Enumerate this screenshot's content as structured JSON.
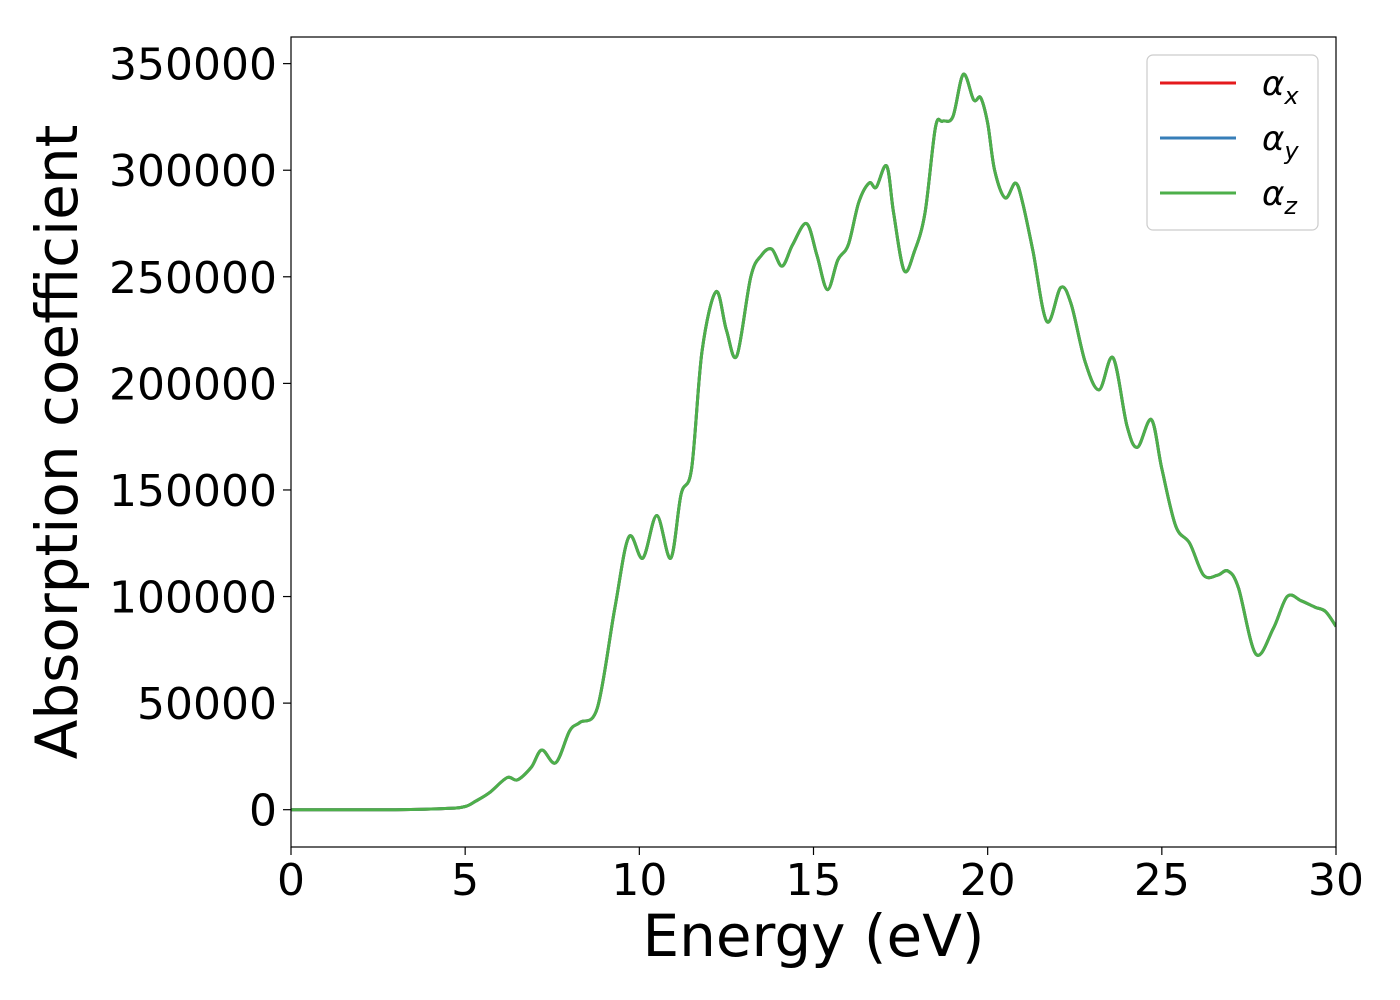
{
  "chart_data": {
    "type": "line",
    "title": "",
    "xlabel": "Energy (eV)",
    "ylabel": "Absorption coefficient",
    "xlim": [
      0,
      30
    ],
    "ylim": [
      -17500,
      362500
    ],
    "xticks": [
      0,
      5,
      10,
      15,
      20,
      25,
      30
    ],
    "xtick_labels": [
      "0",
      "5",
      "10",
      "15",
      "20",
      "25",
      "30"
    ],
    "yticks": [
      0,
      50000,
      100000,
      150000,
      200000,
      250000,
      300000,
      350000
    ],
    "ytick_labels": [
      "0",
      "50000",
      "100000",
      "150000",
      "200000",
      "250000",
      "300000",
      "350000"
    ],
    "grid": false,
    "legend_position": "top-right",
    "x": [
      0,
      3,
      4.5,
      5,
      5.3,
      5.7,
      6.2,
      6.5,
      6.9,
      7.2,
      7.6,
      8.0,
      8.3,
      8.8,
      9.3,
      9.7,
      10.1,
      10.5,
      10.9,
      11.2,
      11.5,
      11.8,
      12.2,
      12.5,
      12.8,
      13.2,
      13.5,
      13.8,
      14.1,
      14.4,
      14.8,
      15.1,
      15.4,
      15.7,
      16.0,
      16.3,
      16.6,
      16.8,
      17.1,
      17.3,
      17.6,
      17.9,
      18.2,
      18.5,
      18.7,
      19.0,
      19.3,
      19.6,
      19.8,
      20.0,
      20.2,
      20.5,
      20.8,
      21.0,
      21.3,
      21.7,
      22.1,
      22.4,
      22.8,
      23.2,
      23.6,
      24.0,
      24.3,
      24.7,
      25.0,
      25.4,
      25.8,
      26.2,
      26.6,
      26.9,
      27.2,
      27.7,
      28.2,
      28.6,
      29.0,
      29.4,
      29.7,
      30.0
    ],
    "series": [
      {
        "name": "α_x",
        "color": "#e41a1c",
        "values": [
          0,
          0,
          600,
          1500,
          4000,
          8000,
          15000,
          14000,
          20000,
          28000,
          22000,
          37000,
          41000,
          48000,
          95000,
          128000,
          118000,
          138000,
          118000,
          148000,
          160000,
          215000,
          243000,
          225000,
          213000,
          250000,
          260000,
          263000,
          255000,
          265000,
          275000,
          260000,
          244000,
          258000,
          265000,
          285000,
          294000,
          292000,
          302000,
          280000,
          253000,
          262000,
          280000,
          320000,
          323000,
          325000,
          345000,
          333000,
          334000,
          322000,
          300000,
          287000,
          294000,
          285000,
          262000,
          229000,
          245000,
          237000,
          210000,
          197000,
          212000,
          180000,
          170000,
          183000,
          160000,
          133000,
          125000,
          110000,
          110000,
          112000,
          104000,
          73000,
          85000,
          100000,
          98000,
          95000,
          93000,
          86000
        ]
      },
      {
        "name": "α_y",
        "color": "#377eb8",
        "values": [
          0,
          0,
          600,
          1500,
          4000,
          8000,
          15000,
          14000,
          20000,
          28000,
          22000,
          37000,
          41000,
          48000,
          95000,
          128000,
          118000,
          138000,
          118000,
          148000,
          160000,
          215000,
          243000,
          225000,
          213000,
          250000,
          260000,
          263000,
          255000,
          265000,
          275000,
          260000,
          244000,
          258000,
          265000,
          285000,
          294000,
          292000,
          302000,
          280000,
          253000,
          262000,
          280000,
          320000,
          323000,
          325000,
          345000,
          333000,
          334000,
          322000,
          300000,
          287000,
          294000,
          285000,
          262000,
          229000,
          245000,
          237000,
          210000,
          197000,
          212000,
          180000,
          170000,
          183000,
          160000,
          133000,
          125000,
          110000,
          110000,
          112000,
          104000,
          73000,
          85000,
          100000,
          98000,
          95000,
          93000,
          86000
        ]
      },
      {
        "name": "α_z",
        "color": "#4daf4a",
        "values": [
          0,
          0,
          600,
          1500,
          4000,
          8000,
          15000,
          14000,
          20000,
          28000,
          22000,
          37000,
          41000,
          48000,
          95000,
          128000,
          118000,
          138000,
          118000,
          148000,
          160000,
          215000,
          243000,
          225000,
          213000,
          250000,
          260000,
          263000,
          255000,
          265000,
          275000,
          260000,
          244000,
          258000,
          265000,
          285000,
          294000,
          292000,
          302000,
          280000,
          253000,
          262000,
          280000,
          320000,
          323000,
          325000,
          345000,
          333000,
          334000,
          322000,
          300000,
          287000,
          294000,
          285000,
          262000,
          229000,
          245000,
          237000,
          210000,
          197000,
          212000,
          180000,
          170000,
          183000,
          160000,
          133000,
          125000,
          110000,
          110000,
          112000,
          104000,
          73000,
          85000,
          100000,
          98000,
          95000,
          93000,
          86000
        ]
      }
    ],
    "legend": [
      {
        "base": "α",
        "sub": "x"
      },
      {
        "base": "α",
        "sub": "y"
      },
      {
        "base": "α",
        "sub": "z"
      }
    ]
  }
}
